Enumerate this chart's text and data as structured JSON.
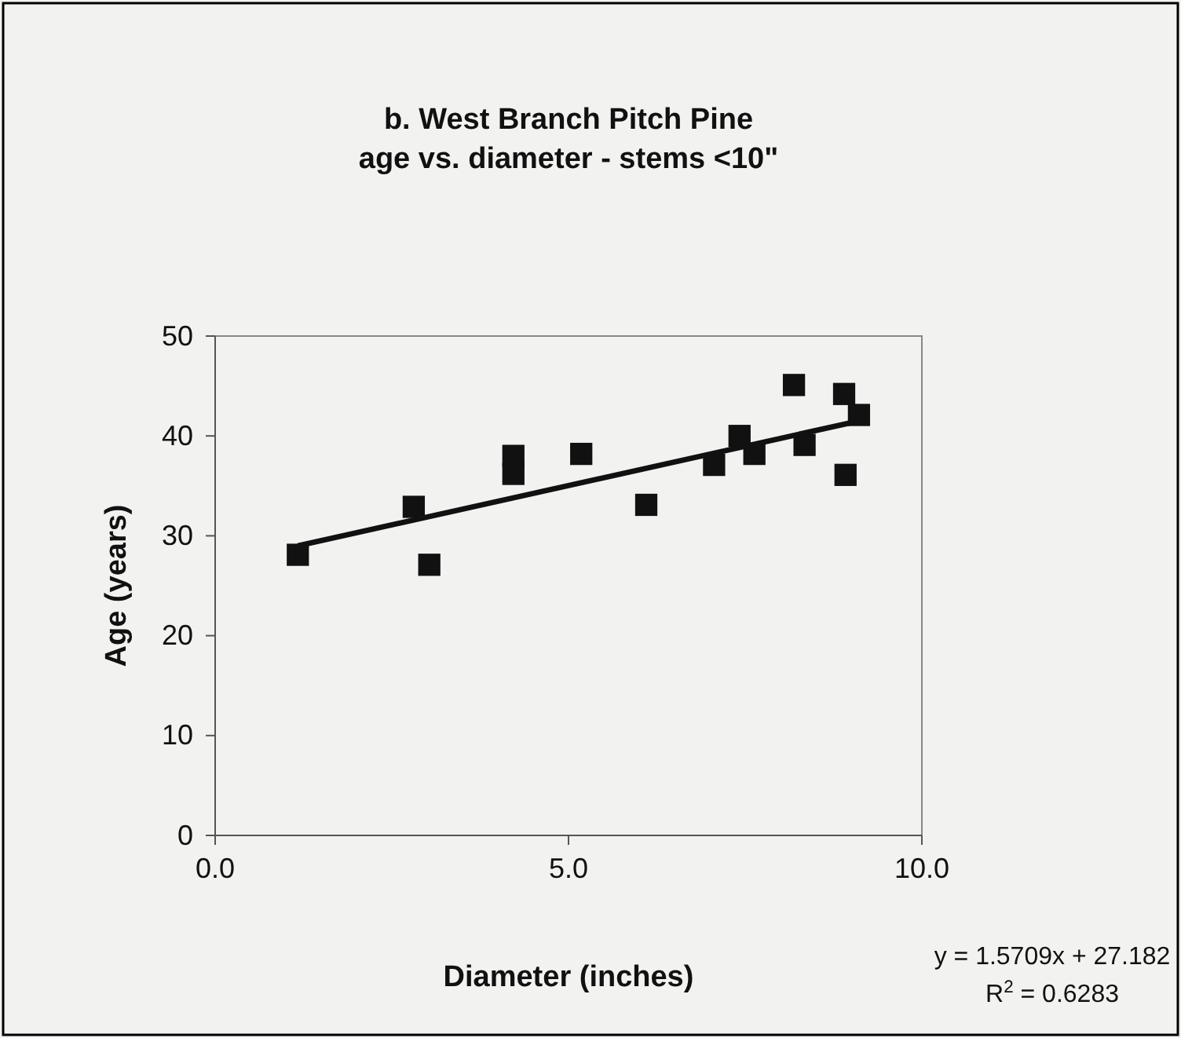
{
  "chart_data": {
    "type": "scatter",
    "title": "b.  West Branch Pitch Pine",
    "subtitle": "age vs. diameter - stems <10\"",
    "xlabel": "Diameter (inches)",
    "ylabel": "Age (years)",
    "xlim": [
      0,
      10
    ],
    "xticks": [
      {
        "value": 0,
        "label": "0.0"
      },
      {
        "value": 5,
        "label": "5.0"
      },
      {
        "value": 10,
        "label": "10.0"
      }
    ],
    "ylim": [
      0,
      50
    ],
    "yticks": [
      0,
      10,
      20,
      30,
      40,
      50
    ],
    "grid": false,
    "series": [
      {
        "color": "#111111",
        "marker": "square",
        "x": [
          1.17,
          2.81,
          3.03,
          4.22,
          4.22,
          5.18,
          6.1,
          7.06,
          7.42,
          7.63,
          8.19,
          8.34,
          8.9,
          8.92,
          9.11
        ],
        "values": [
          28.1,
          32.9,
          27.1,
          38.0,
          36.2,
          38.2,
          33.1,
          37.1,
          40.0,
          38.2,
          45.1,
          39.1,
          44.2,
          36.1,
          42.1
        ]
      },
      {
        "type": "line",
        "color": "#111111",
        "marker": "none",
        "x": [
          1.17,
          9.11
        ],
        "values": [
          29.0,
          41.5
        ]
      }
    ],
    "annotations": [
      "y = 1.5709x + 27.182",
      "R$^{2}$ = 0.6283"
    ]
  }
}
